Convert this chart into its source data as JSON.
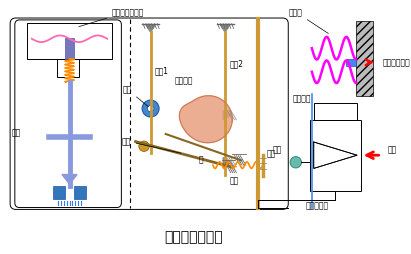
{
  "title": "气动阀门定位器",
  "title_fontsize": 10,
  "bg_color": "#ffffff",
  "labels": {
    "membrane_regulator": "气动薄膜调节阀",
    "bellows": "波纹管",
    "pressure_signal": "压力信号输入",
    "lever1": "杠杆1",
    "lever2": "杠杆2",
    "cam": "偏心凸轮",
    "roller": "滚轮",
    "flat_plate": "平板",
    "rocker": "摆杆",
    "shaft": "轴",
    "spring": "弹簧",
    "baffle": "挡板",
    "nozzle": "喷嘴",
    "orifice": "恒节流孔",
    "amplifier": "气动放大器",
    "air_source": "气源"
  }
}
